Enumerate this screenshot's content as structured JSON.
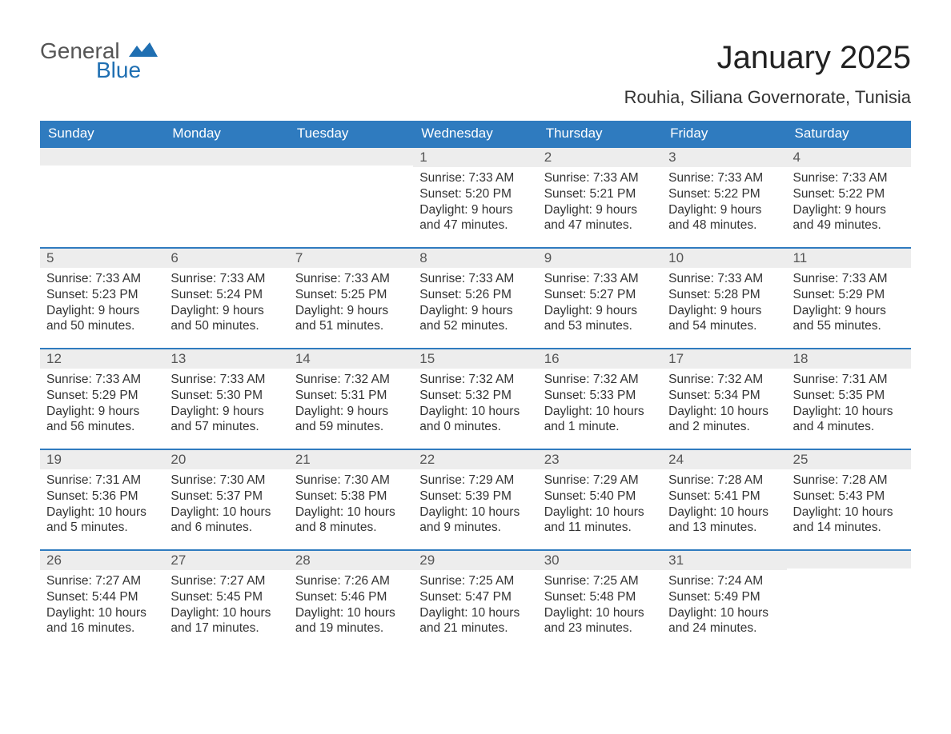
{
  "brand": {
    "word1": "General",
    "word2": "Blue",
    "accent_color": "#1f6fb2"
  },
  "title": "January 2025",
  "location": "Rouhia, Siliana Governorate, Tunisia",
  "colors": {
    "header_bg": "#2f7bbf",
    "header_text": "#ffffff",
    "daynum_bg": "#ededed",
    "week_border": "#2f7bbf",
    "body_text": "#333333",
    "page_bg": "#ffffff"
  },
  "fonts": {
    "title_size_pt": 30,
    "location_size_pt": 17,
    "header_size_pt": 13,
    "body_size_pt": 12
  },
  "day_headers": [
    "Sunday",
    "Monday",
    "Tuesday",
    "Wednesday",
    "Thursday",
    "Friday",
    "Saturday"
  ],
  "weeks": [
    [
      null,
      null,
      null,
      {
        "n": "1",
        "sunrise": "7:33 AM",
        "sunset": "5:20 PM",
        "daylight": "9 hours and 47 minutes."
      },
      {
        "n": "2",
        "sunrise": "7:33 AM",
        "sunset": "5:21 PM",
        "daylight": "9 hours and 47 minutes."
      },
      {
        "n": "3",
        "sunrise": "7:33 AM",
        "sunset": "5:22 PM",
        "daylight": "9 hours and 48 minutes."
      },
      {
        "n": "4",
        "sunrise": "7:33 AM",
        "sunset": "5:22 PM",
        "daylight": "9 hours and 49 minutes."
      }
    ],
    [
      {
        "n": "5",
        "sunrise": "7:33 AM",
        "sunset": "5:23 PM",
        "daylight": "9 hours and 50 minutes."
      },
      {
        "n": "6",
        "sunrise": "7:33 AM",
        "sunset": "5:24 PM",
        "daylight": "9 hours and 50 minutes."
      },
      {
        "n": "7",
        "sunrise": "7:33 AM",
        "sunset": "5:25 PM",
        "daylight": "9 hours and 51 minutes."
      },
      {
        "n": "8",
        "sunrise": "7:33 AM",
        "sunset": "5:26 PM",
        "daylight": "9 hours and 52 minutes."
      },
      {
        "n": "9",
        "sunrise": "7:33 AM",
        "sunset": "5:27 PM",
        "daylight": "9 hours and 53 minutes."
      },
      {
        "n": "10",
        "sunrise": "7:33 AM",
        "sunset": "5:28 PM",
        "daylight": "9 hours and 54 minutes."
      },
      {
        "n": "11",
        "sunrise": "7:33 AM",
        "sunset": "5:29 PM",
        "daylight": "9 hours and 55 minutes."
      }
    ],
    [
      {
        "n": "12",
        "sunrise": "7:33 AM",
        "sunset": "5:29 PM",
        "daylight": "9 hours and 56 minutes."
      },
      {
        "n": "13",
        "sunrise": "7:33 AM",
        "sunset": "5:30 PM",
        "daylight": "9 hours and 57 minutes."
      },
      {
        "n": "14",
        "sunrise": "7:32 AM",
        "sunset": "5:31 PM",
        "daylight": "9 hours and 59 minutes."
      },
      {
        "n": "15",
        "sunrise": "7:32 AM",
        "sunset": "5:32 PM",
        "daylight": "10 hours and 0 minutes."
      },
      {
        "n": "16",
        "sunrise": "7:32 AM",
        "sunset": "5:33 PM",
        "daylight": "10 hours and 1 minute."
      },
      {
        "n": "17",
        "sunrise": "7:32 AM",
        "sunset": "5:34 PM",
        "daylight": "10 hours and 2 minutes."
      },
      {
        "n": "18",
        "sunrise": "7:31 AM",
        "sunset": "5:35 PM",
        "daylight": "10 hours and 4 minutes."
      }
    ],
    [
      {
        "n": "19",
        "sunrise": "7:31 AM",
        "sunset": "5:36 PM",
        "daylight": "10 hours and 5 minutes."
      },
      {
        "n": "20",
        "sunrise": "7:30 AM",
        "sunset": "5:37 PM",
        "daylight": "10 hours and 6 minutes."
      },
      {
        "n": "21",
        "sunrise": "7:30 AM",
        "sunset": "5:38 PM",
        "daylight": "10 hours and 8 minutes."
      },
      {
        "n": "22",
        "sunrise": "7:29 AM",
        "sunset": "5:39 PM",
        "daylight": "10 hours and 9 minutes."
      },
      {
        "n": "23",
        "sunrise": "7:29 AM",
        "sunset": "5:40 PM",
        "daylight": "10 hours and 11 minutes."
      },
      {
        "n": "24",
        "sunrise": "7:28 AM",
        "sunset": "5:41 PM",
        "daylight": "10 hours and 13 minutes."
      },
      {
        "n": "25",
        "sunrise": "7:28 AM",
        "sunset": "5:43 PM",
        "daylight": "10 hours and 14 minutes."
      }
    ],
    [
      {
        "n": "26",
        "sunrise": "7:27 AM",
        "sunset": "5:44 PM",
        "daylight": "10 hours and 16 minutes."
      },
      {
        "n": "27",
        "sunrise": "7:27 AM",
        "sunset": "5:45 PM",
        "daylight": "10 hours and 17 minutes."
      },
      {
        "n": "28",
        "sunrise": "7:26 AM",
        "sunset": "5:46 PM",
        "daylight": "10 hours and 19 minutes."
      },
      {
        "n": "29",
        "sunrise": "7:25 AM",
        "sunset": "5:47 PM",
        "daylight": "10 hours and 21 minutes."
      },
      {
        "n": "30",
        "sunrise": "7:25 AM",
        "sunset": "5:48 PM",
        "daylight": "10 hours and 23 minutes."
      },
      {
        "n": "31",
        "sunrise": "7:24 AM",
        "sunset": "5:49 PM",
        "daylight": "10 hours and 24 minutes."
      },
      null
    ]
  ],
  "labels": {
    "sunrise": "Sunrise: ",
    "sunset": "Sunset: ",
    "daylight": "Daylight: "
  }
}
